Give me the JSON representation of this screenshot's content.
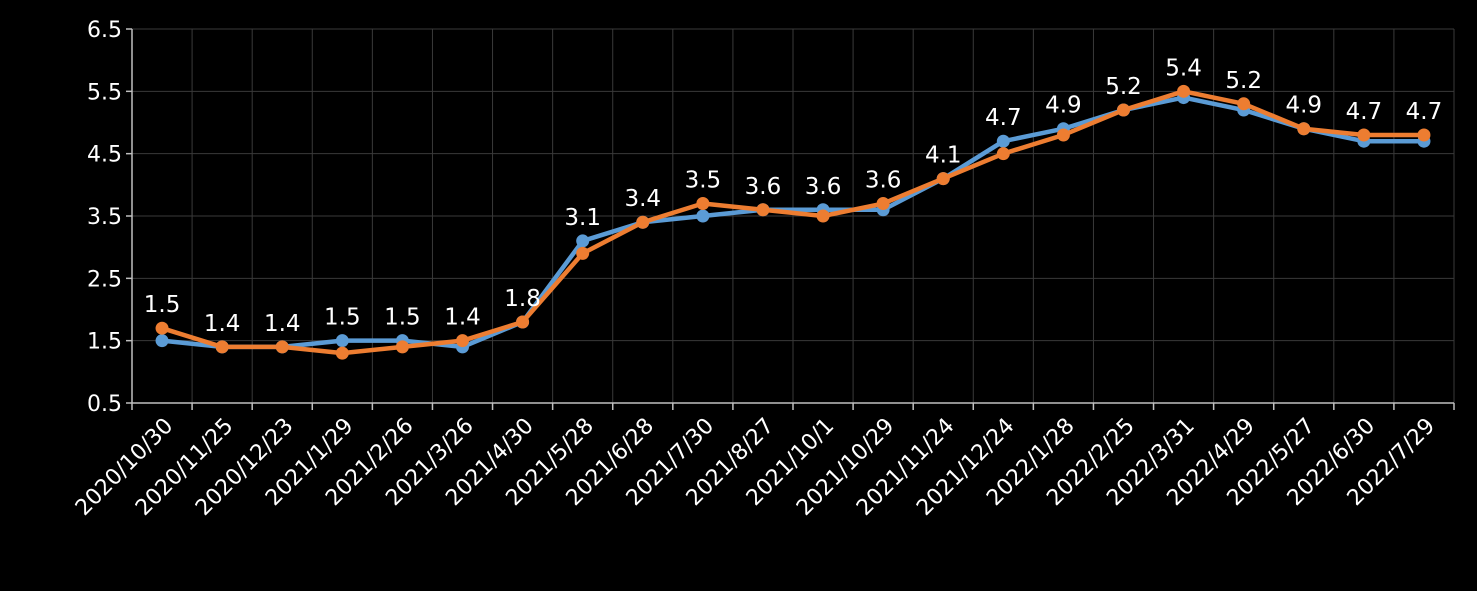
{
  "chart_data": {
    "type": "line",
    "categories": [
      "2020/10/30",
      "2020/11/25",
      "2020/12/23",
      "2021/1/29",
      "2021/2/26",
      "2021/3/26",
      "2021/4/30",
      "2021/5/28",
      "2021/6/28",
      "2021/7/30",
      "2021/8/27",
      "2021/10/1",
      "2021/10/29",
      "2021/11/24",
      "2021/12/24",
      "2022/1/28",
      "2022/2/25",
      "2022/3/31",
      "2022/4/29",
      "2022/5/27",
      "2022/6/30",
      "2022/7/29"
    ],
    "series": [
      {
        "color": "#5b9bd5",
        "values": [
          1.5,
          1.4,
          1.4,
          1.5,
          1.5,
          1.4,
          1.8,
          3.1,
          3.4,
          3.5,
          3.6,
          3.6,
          3.6,
          4.1,
          4.7,
          4.9,
          5.2,
          5.4,
          5.2,
          4.9,
          4.7,
          4.7
        ],
        "labels": [
          "1.5",
          "1.4",
          "1.4",
          "1.5",
          "1.5",
          "1.4",
          "1.8",
          "3.1",
          "3.4",
          "3.5",
          "3.6",
          "3.6",
          "3.6",
          "4.1",
          "4.7",
          "4.9",
          "5.2",
          "5.4",
          "5.2",
          "4.9",
          "4.7",
          "4.7"
        ]
      },
      {
        "color": "#ed7d31",
        "values": [
          1.7,
          1.4,
          1.4,
          1.3,
          1.4,
          1.5,
          1.8,
          2.9,
          3.4,
          3.7,
          3.6,
          3.5,
          3.7,
          4.1,
          4.5,
          4.8,
          5.2,
          5.5,
          5.3,
          4.9,
          4.8,
          4.8
        ]
      }
    ],
    "ylim": [
      0.5,
      6.5
    ],
    "yticks": [
      "0.5",
      "1.5",
      "2.5",
      "3.5",
      "4.5",
      "5.5",
      "6.5"
    ],
    "grid": true,
    "legend": "none",
    "title": "",
    "xlabel": "",
    "ylabel": ""
  }
}
